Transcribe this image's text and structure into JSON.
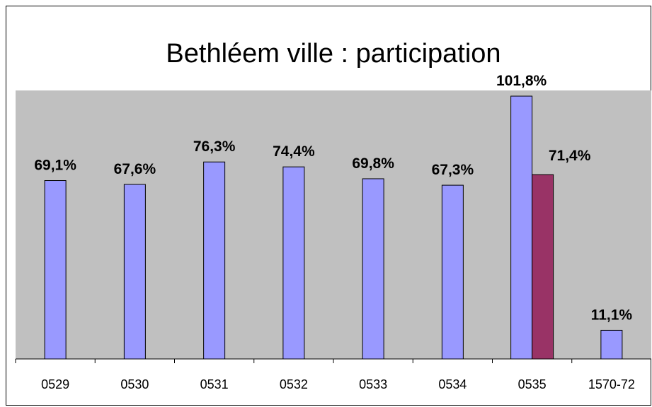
{
  "chart_data": {
    "type": "bar",
    "title": "Bethléem ville : participation",
    "xlabel": "",
    "ylabel": "",
    "categories": [
      "0529",
      "0530",
      "0531",
      "0532",
      "0533",
      "0534",
      "0535",
      "1570-72"
    ],
    "series": [
      {
        "values": [
          69.1,
          67.6,
          76.3,
          74.4,
          69.8,
          67.3,
          101.8,
          11.1
        ],
        "labels": [
          "69,1%",
          "67,6%",
          "76,3%",
          "74,4%",
          "69,8%",
          "67,3%",
          "101,8%",
          "11,1%"
        ],
        "color": "#9999ff"
      },
      {
        "values": [
          null,
          null,
          null,
          null,
          null,
          null,
          71.4,
          null
        ],
        "labels": [
          "",
          "",
          "",
          "",
          "",
          "",
          "71,4%",
          ""
        ],
        "color": "#993366"
      }
    ],
    "ylim": [
      0,
      104
    ],
    "grid": false,
    "legend": "none",
    "plot_background": "#c0c0c0"
  }
}
